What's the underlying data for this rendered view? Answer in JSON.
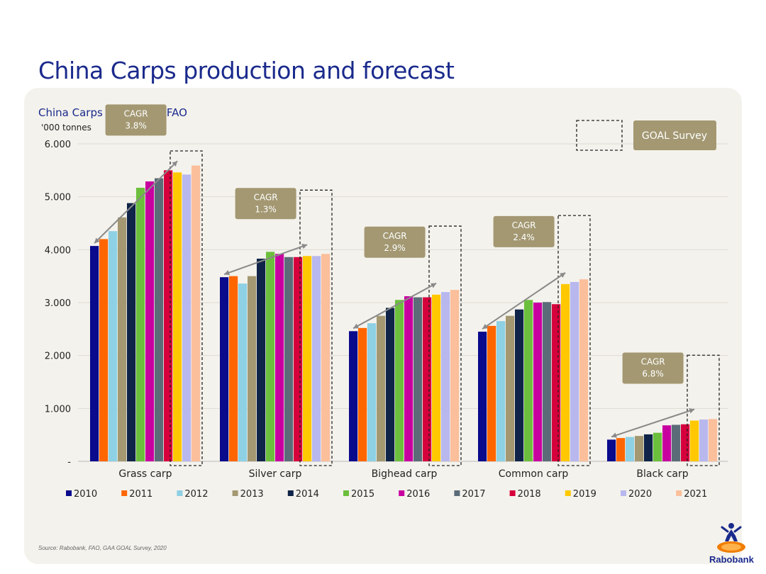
{
  "page": {
    "title": "China Carps production and forecast",
    "source": "Source: Rabobank, FAO, GAA GOAL Survey, 2020",
    "logo_text": "Rabobank"
  },
  "colors": {
    "title": "#1a2a8c",
    "cagr_box": "#a39872",
    "arrow": "#8a8a8a"
  },
  "chart_data": {
    "type": "bar",
    "title": "China Carps production FAO",
    "ylabel": "'000 tonnes",
    "ylim": [
      0,
      6000
    ],
    "yticks": [
      {
        "value": 0,
        "label": "-"
      },
      {
        "value": 1000,
        "label": "1.000"
      },
      {
        "value": 2000,
        "label": "2.000"
      },
      {
        "value": 3000,
        "label": "3.000"
      },
      {
        "value": 4000,
        "label": "4.000"
      },
      {
        "value": 5000,
        "label": "5.000"
      },
      {
        "value": 6000,
        "label": "6.000"
      }
    ],
    "grid": true,
    "legend_position": "bottom",
    "categories": [
      "Grass carp",
      "Silver carp",
      "Bighead carp",
      "Common carp",
      "Black carp"
    ],
    "series": [
      {
        "name": "2010",
        "color": "#0a0a8c",
        "values": [
          4070,
          3480,
          2460,
          2450,
          410
        ]
      },
      {
        "name": "2011",
        "color": "#ff6600",
        "values": [
          4200,
          3500,
          2520,
          2560,
          440
        ]
      },
      {
        "name": "2012",
        "color": "#8ed0e4",
        "values": [
          4350,
          3360,
          2610,
          2650,
          460
        ]
      },
      {
        "name": "2013",
        "color": "#a39872",
        "values": [
          4610,
          3500,
          2750,
          2750,
          480
        ]
      },
      {
        "name": "2014",
        "color": "#0f2448",
        "values": [
          4880,
          3830,
          2900,
          2870,
          510
        ]
      },
      {
        "name": "2015",
        "color": "#6cbf3c",
        "values": [
          5170,
          3960,
          3050,
          3050,
          540
        ]
      },
      {
        "name": "2016",
        "color": "#c800a0",
        "values": [
          5290,
          3920,
          3120,
          3000,
          680
        ]
      },
      {
        "name": "2017",
        "color": "#5c6b78",
        "values": [
          5350,
          3860,
          3100,
          3010,
          690
        ]
      },
      {
        "name": "2018",
        "color": "#d6003c",
        "values": [
          5500,
          3860,
          3100,
          2970,
          700
        ]
      },
      {
        "name": "2019",
        "color": "#ffc800",
        "values": [
          5460,
          3880,
          3150,
          3350,
          770
        ]
      },
      {
        "name": "2020",
        "color": "#b8b8ee",
        "values": [
          5420,
          3880,
          3200,
          3390,
          790
        ]
      },
      {
        "name": "2021",
        "color": "#fbbf9b",
        "values": [
          5590,
          3920,
          3240,
          3440,
          800
        ]
      }
    ],
    "annotations": {
      "cagr": [
        {
          "category": "Grass carp",
          "label": "CAGR",
          "value": "3.8%"
        },
        {
          "category": "Silver carp",
          "label": "CAGR",
          "value": "1.3%"
        },
        {
          "category": "Bighead carp",
          "label": "CAGR",
          "value": "2.9%"
        },
        {
          "category": "Common carp",
          "label": "CAGR",
          "value": "2.4%"
        },
        {
          "category": "Black carp",
          "label": "CAGR",
          "value": "6.8%"
        }
      ],
      "forecast_legend_label": "GOAL Survey",
      "forecast_years": [
        "2019",
        "2020",
        "2021"
      ]
    }
  }
}
